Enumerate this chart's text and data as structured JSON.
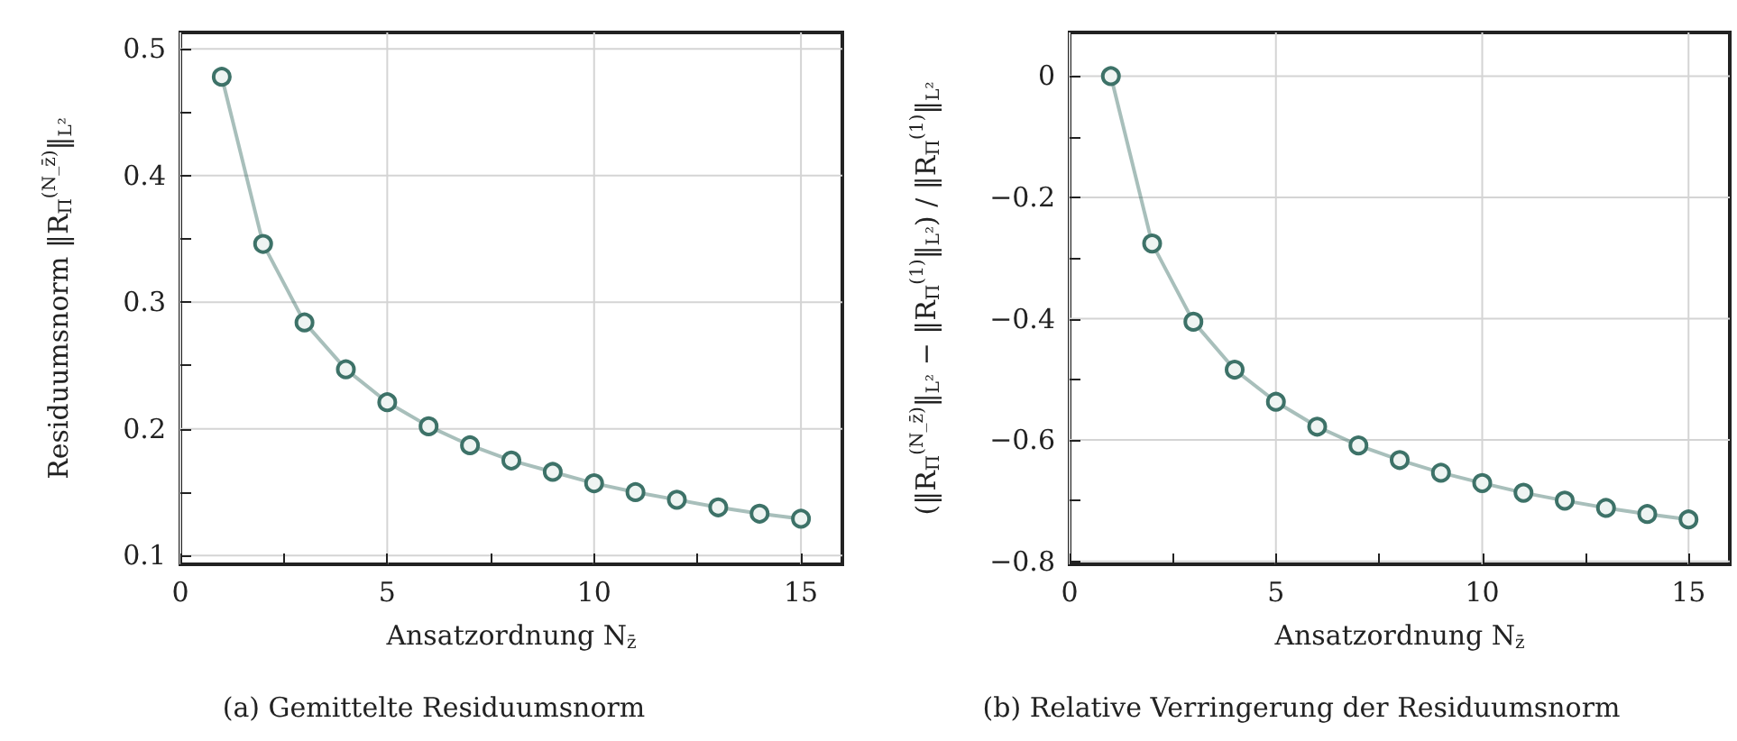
{
  "chart_data": [
    {
      "type": "line",
      "ylabel": "Residuumsnorm ‖R$_{Π}$$^{(N_z̄)}$‖$_{L²}$",
      "xlabel": "Ansatzordnung N$_{z̄}$",
      "annotations": [
        "(a) Gemittelte Residuumsnorm"
      ],
      "x": [
        1,
        2,
        3,
        4,
        5,
        6,
        7,
        8,
        9,
        10,
        11,
        12,
        13,
        14,
        15
      ],
      "series": [
        {
          "color": "#3d7268",
          "values": [
            0.478,
            0.346,
            0.284,
            0.247,
            0.221,
            0.202,
            0.187,
            0.175,
            0.166,
            0.157,
            0.15,
            0.144,
            0.138,
            0.133,
            0.129
          ]
        }
      ],
      "xlim": [
        0,
        16
      ],
      "xticks": [
        0,
        {
          "value": 2.5,
          "label": null
        },
        5,
        {
          "value": 7.5,
          "label": null
        },
        10,
        {
          "value": 12.5,
          "label": null
        },
        15
      ],
      "ylim": [
        0.093,
        0.513
      ],
      "yticks": [
        0.1,
        {
          "value": 0.15,
          "label": null
        },
        0.2,
        {
          "value": 0.25,
          "label": null
        },
        0.3,
        {
          "value": 0.35,
          "label": null
        },
        0.4,
        {
          "value": 0.45,
          "label": null
        },
        0.5
      ],
      "grid": true,
      "marker": "circle"
    },
    {
      "type": "line",
      "ylabel": "(‖R$_{Π}$$^{(N_z̄)}$‖$_{L²}$ − ‖R$_{Π}$$^{(1)}$‖$_{L²}$) / ‖R$_{Π}$$^{(1)}$‖$_{L²}$",
      "xlabel": "Ansatzordnung N$_{z̄}$",
      "annotations": [
        "(b) Relative Verringerung der Residuumsnorm"
      ],
      "x": [
        1,
        2,
        3,
        4,
        5,
        6,
        7,
        8,
        9,
        10,
        11,
        12,
        13,
        14,
        15
      ],
      "series": [
        {
          "color": "#3d7268",
          "values": [
            0,
            -0.276,
            -0.405,
            -0.484,
            -0.537,
            -0.578,
            -0.609,
            -0.633,
            -0.654,
            -0.671,
            -0.687,
            -0.7,
            -0.712,
            -0.722,
            -0.731
          ]
        }
      ],
      "xlim": [
        0,
        16
      ],
      "xticks": [
        0,
        {
          "value": 2.5,
          "label": null
        },
        5,
        {
          "value": 7.5,
          "label": null
        },
        10,
        {
          "value": 12.5,
          "label": null
        },
        15
      ],
      "ylim": [
        -0.805,
        0.072
      ],
      "yticks": [
        {
          "value": -0.8,
          "label": "−0.8"
        },
        {
          "value": -0.7,
          "label": null
        },
        {
          "value": -0.6,
          "label": "−0.6"
        },
        {
          "value": -0.5,
          "label": null
        },
        {
          "value": -0.4,
          "label": "−0.4"
        },
        {
          "value": -0.3,
          "label": null
        },
        {
          "value": -0.2,
          "label": "−0.2"
        },
        {
          "value": -0.1,
          "label": null
        },
        0
      ],
      "grid": true,
      "marker": "circle"
    }
  ]
}
